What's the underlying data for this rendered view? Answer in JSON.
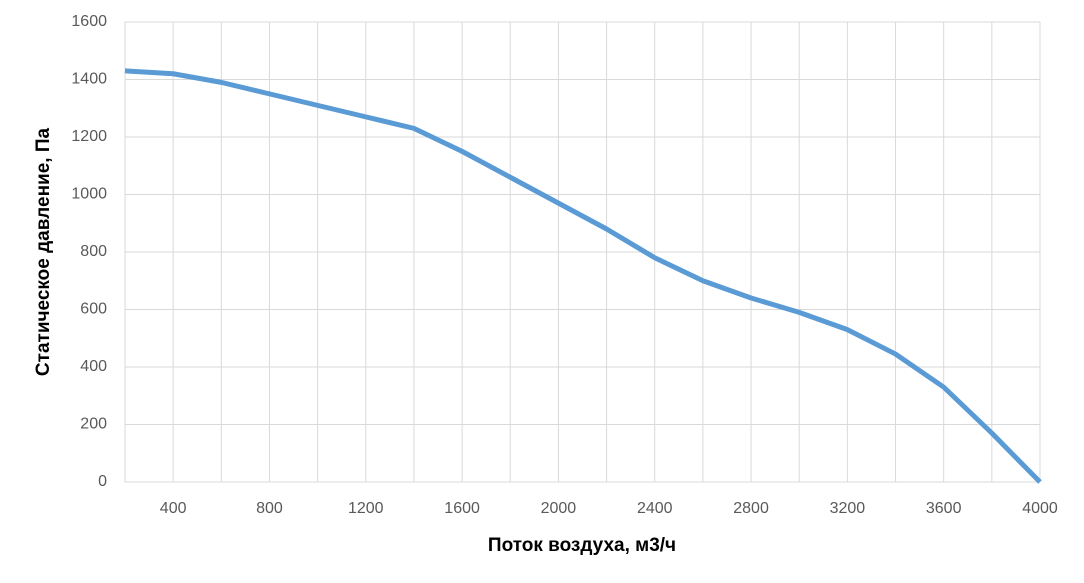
{
  "chart_data": {
    "type": "line",
    "x_label": "Поток воздуха, м3/ч",
    "y_label": "Статическое давление, Па",
    "x": [
      200,
      400,
      600,
      800,
      1000,
      1200,
      1400,
      1600,
      1800,
      2000,
      2200,
      2400,
      2600,
      2800,
      3000,
      3200,
      3400,
      3600,
      3800,
      4000
    ],
    "series": [
      {
        "color": "#5b9bd5",
        "values": [
          1430,
          1420,
          1390,
          1350,
          1310,
          1270,
          1230,
          1150,
          1060,
          970,
          880,
          780,
          700,
          640,
          590,
          530,
          445,
          330,
          170,
          0
        ]
      }
    ],
    "xlim": [
      200,
      4000
    ],
    "xticks": [
      400,
      800,
      1200,
      1600,
      2000,
      2400,
      2800,
      3200,
      3600,
      4000
    ],
    "xminorticks": [
      200,
      600,
      1000,
      1400,
      1800,
      2200,
      2600,
      3000,
      3400,
      3800
    ],
    "ylim": [
      0,
      1600
    ],
    "yticks": [
      0,
      200,
      400,
      600,
      800,
      1000,
      1200,
      1400,
      1600
    ],
    "grid": true
  }
}
